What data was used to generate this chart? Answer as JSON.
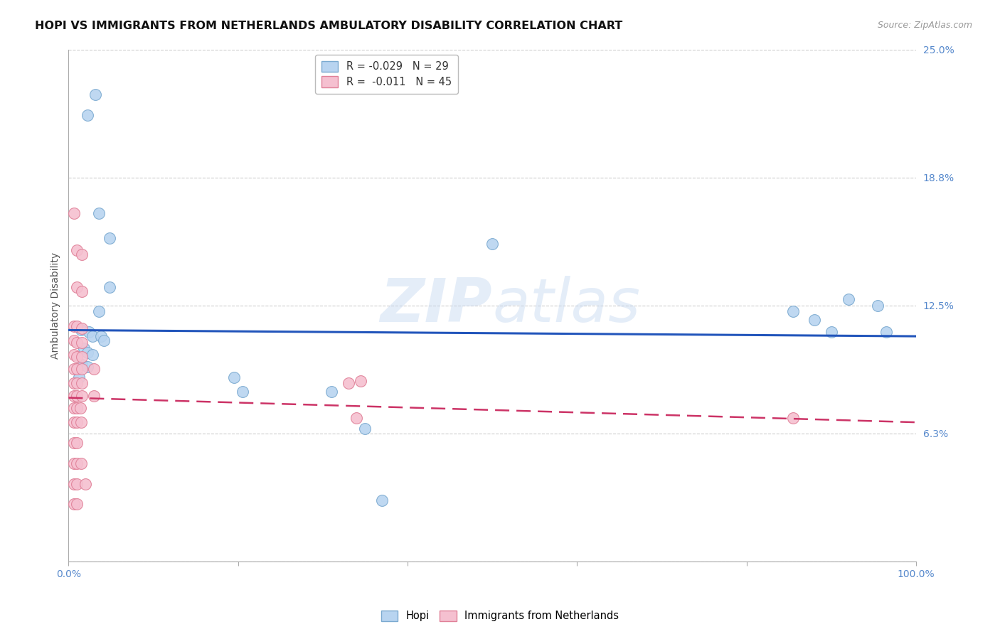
{
  "title": "HOPI VS IMMIGRANTS FROM NETHERLANDS AMBULATORY DISABILITY CORRELATION CHART",
  "source": "Source: ZipAtlas.com",
  "ylabel": "Ambulatory Disability",
  "watermark": "ZIPatlas",
  "xlim": [
    0.0,
    1.0
  ],
  "ylim": [
    0.0,
    0.25
  ],
  "yticks": [
    0.0,
    0.0625,
    0.125,
    0.1875,
    0.25
  ],
  "ytick_labels": [
    "",
    "6.3%",
    "12.5%",
    "18.8%",
    "25.0%"
  ],
  "xtick_positions": [
    0.0,
    0.2,
    0.4,
    0.6,
    0.8,
    1.0
  ],
  "xtick_labels": [
    "0.0%",
    "",
    "",
    "",
    "",
    "100.0%"
  ],
  "legend_label_hopi": "R = -0.029   N = 29",
  "legend_label_neth": "R =  -0.011   N = 45",
  "hopi_color": "#b8d4f0",
  "hopi_edge": "#7baad0",
  "netherlands_color": "#f5c0d0",
  "netherlands_edge": "#e08098",
  "line_hopi_color": "#2255bb",
  "line_netherlands_color": "#cc3366",
  "line_hopi_y0": 0.113,
  "line_hopi_y1": 0.11,
  "line_neth_y0": 0.08,
  "line_neth_y1": 0.068,
  "hopi_points": [
    [
      0.022,
      0.218
    ],
    [
      0.032,
      0.228
    ],
    [
      0.036,
      0.17
    ],
    [
      0.048,
      0.158
    ],
    [
      0.048,
      0.134
    ],
    [
      0.036,
      0.122
    ],
    [
      0.015,
      0.113
    ],
    [
      0.024,
      0.112
    ],
    [
      0.028,
      0.11
    ],
    [
      0.038,
      0.11
    ],
    [
      0.042,
      0.108
    ],
    [
      0.018,
      0.104
    ],
    [
      0.022,
      0.102
    ],
    [
      0.028,
      0.101
    ],
    [
      0.016,
      0.096
    ],
    [
      0.022,
      0.095
    ],
    [
      0.012,
      0.09
    ],
    [
      0.195,
      0.09
    ],
    [
      0.205,
      0.083
    ],
    [
      0.31,
      0.083
    ],
    [
      0.5,
      0.155
    ],
    [
      0.855,
      0.122
    ],
    [
      0.88,
      0.118
    ],
    [
      0.9,
      0.112
    ],
    [
      0.92,
      0.128
    ],
    [
      0.955,
      0.125
    ],
    [
      0.965,
      0.112
    ],
    [
      0.35,
      0.065
    ],
    [
      0.37,
      0.03
    ]
  ],
  "netherlands_points": [
    [
      0.006,
      0.17
    ],
    [
      0.01,
      0.152
    ],
    [
      0.016,
      0.15
    ],
    [
      0.01,
      0.134
    ],
    [
      0.016,
      0.132
    ],
    [
      0.006,
      0.115
    ],
    [
      0.01,
      0.115
    ],
    [
      0.016,
      0.114
    ],
    [
      0.006,
      0.108
    ],
    [
      0.01,
      0.107
    ],
    [
      0.016,
      0.107
    ],
    [
      0.006,
      0.101
    ],
    [
      0.01,
      0.1
    ],
    [
      0.016,
      0.1
    ],
    [
      0.006,
      0.094
    ],
    [
      0.01,
      0.094
    ],
    [
      0.016,
      0.094
    ],
    [
      0.006,
      0.087
    ],
    [
      0.01,
      0.087
    ],
    [
      0.016,
      0.087
    ],
    [
      0.006,
      0.081
    ],
    [
      0.01,
      0.081
    ],
    [
      0.016,
      0.081
    ],
    [
      0.006,
      0.075
    ],
    [
      0.01,
      0.075
    ],
    [
      0.014,
      0.075
    ],
    [
      0.006,
      0.068
    ],
    [
      0.01,
      0.068
    ],
    [
      0.015,
      0.068
    ],
    [
      0.006,
      0.058
    ],
    [
      0.01,
      0.058
    ],
    [
      0.006,
      0.048
    ],
    [
      0.01,
      0.048
    ],
    [
      0.015,
      0.048
    ],
    [
      0.006,
      0.038
    ],
    [
      0.01,
      0.038
    ],
    [
      0.02,
      0.038
    ],
    [
      0.006,
      0.028
    ],
    [
      0.01,
      0.028
    ],
    [
      0.03,
      0.094
    ],
    [
      0.03,
      0.081
    ],
    [
      0.33,
      0.087
    ],
    [
      0.345,
      0.088
    ],
    [
      0.34,
      0.07
    ],
    [
      0.855,
      0.07
    ]
  ],
  "background_color": "#ffffff",
  "grid_color": "#cccccc",
  "title_fontsize": 11.5,
  "axis_label_fontsize": 10,
  "tick_fontsize": 10,
  "tick_color": "#5588cc",
  "ylabel_color": "#555555"
}
